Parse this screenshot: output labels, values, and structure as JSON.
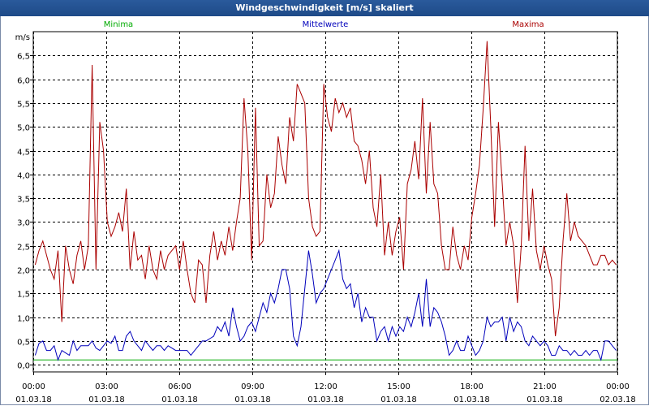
{
  "window": {
    "title": "Windgeschwindigkeit [m/s] skaliert"
  },
  "chart_data": {
    "type": "line",
    "unit": "m/s",
    "ylim": [
      -0.15,
      7.0
    ],
    "yticks": [
      "0,0",
      "0,5",
      "1,0",
      "1,5",
      "2,0",
      "2,5",
      "3,0",
      "3,5",
      "4,0",
      "4,5",
      "5,0",
      "5,5",
      "6,0",
      "6,5"
    ],
    "ytick_values": [
      0,
      0.5,
      1.0,
      1.5,
      2.0,
      2.5,
      3.0,
      3.5,
      4.0,
      4.5,
      5.0,
      5.5,
      6.0,
      6.5
    ],
    "xlim_hours": [
      0,
      24
    ],
    "xtick_hours": [
      0,
      3,
      6,
      9,
      12,
      15,
      18,
      21,
      24
    ],
    "xticks_time": [
      "00:00",
      "03:00",
      "06:00",
      "09:00",
      "12:00",
      "15:00",
      "18:00",
      "21:00",
      "00:00"
    ],
    "xticks_date": [
      "01.03.18",
      "01.03.18",
      "01.03.18",
      "01.03.18",
      "01.03.18",
      "01.03.18",
      "01.03.18",
      "01.03.18",
      "02.03.18"
    ],
    "grid": true,
    "series": [
      {
        "name": "Minima",
        "color": "#00aa00",
        "constant": 0.1
      },
      {
        "name": "Mittelwerte",
        "color": "#0000bb",
        "values": [
          0.2,
          0.45,
          0.5,
          0.3,
          0.3,
          0.4,
          0.1,
          0.3,
          0.25,
          0.2,
          0.5,
          0.3,
          0.4,
          0.4,
          0.4,
          0.5,
          0.35,
          0.3,
          0.4,
          0.5,
          0.45,
          0.6,
          0.3,
          0.3,
          0.6,
          0.7,
          0.5,
          0.4,
          0.3,
          0.5,
          0.4,
          0.3,
          0.4,
          0.4,
          0.3,
          0.4,
          0.35,
          0.3,
          0.3,
          0.3,
          0.3,
          0.2,
          0.3,
          0.4,
          0.5,
          0.5,
          0.55,
          0.6,
          0.8,
          0.7,
          0.9,
          0.6,
          1.2,
          0.8,
          0.5,
          0.6,
          0.8,
          0.9,
          0.7,
          1.0,
          1.3,
          1.1,
          1.5,
          1.3,
          1.6,
          2.0,
          2.0,
          1.6,
          0.6,
          0.4,
          0.8,
          1.6,
          2.4,
          1.9,
          1.3,
          1.5,
          1.6,
          1.8,
          2.0,
          2.2,
          2.4,
          1.8,
          1.6,
          1.7,
          1.2,
          1.5,
          0.9,
          1.2,
          1.0,
          1.0,
          0.5,
          0.7,
          0.8,
          0.5,
          0.8,
          0.6,
          0.8,
          0.7,
          1.0,
          0.8,
          1.1,
          1.5,
          0.8,
          1.8,
          0.8,
          1.2,
          1.1,
          0.9,
          0.6,
          0.2,
          0.3,
          0.5,
          0.3,
          0.3,
          0.6,
          0.4,
          0.2,
          0.3,
          0.5,
          1.0,
          0.8,
          0.9,
          0.9,
          1.0,
          0.5,
          1.0,
          0.7,
          0.9,
          0.8,
          0.5,
          0.4,
          0.6,
          0.5,
          0.4,
          0.5,
          0.4,
          0.2,
          0.2,
          0.4,
          0.3,
          0.3,
          0.2,
          0.3,
          0.2,
          0.2,
          0.3,
          0.2,
          0.3,
          0.3,
          0.1,
          0.5,
          0.5,
          0.4,
          0.3
        ]
      },
      {
        "name": "Maxima",
        "color": "#aa0000",
        "values": [
          2.1,
          2.4,
          2.6,
          2.3,
          2.0,
          1.8,
          2.4,
          0.9,
          2.5,
          2.0,
          1.7,
          2.3,
          2.6,
          2.0,
          2.5,
          6.3,
          2.0,
          5.1,
          4.5,
          3.0,
          2.7,
          2.9,
          3.2,
          2.8,
          3.7,
          2.0,
          2.8,
          2.2,
          2.3,
          1.8,
          2.5,
          2.0,
          1.8,
          2.4,
          2.0,
          2.3,
          2.4,
          2.5,
          2.0,
          2.6,
          2.0,
          1.5,
          1.3,
          2.2,
          2.1,
          1.3,
          2.3,
          2.8,
          2.2,
          2.6,
          2.3,
          2.9,
          2.4,
          3.0,
          3.5,
          5.6,
          4.5,
          2.2,
          5.4,
          2.5,
          2.6,
          4.0,
          3.3,
          3.6,
          4.8,
          4.2,
          3.8,
          5.2,
          4.7,
          5.9,
          5.7,
          5.5,
          3.5,
          2.9,
          2.7,
          2.8,
          5.9,
          5.2,
          4.9,
          5.6,
          5.3,
          5.5,
          5.2,
          5.4,
          4.7,
          4.6,
          4.3,
          3.8,
          4.5,
          3.3,
          2.9,
          4.0,
          2.3,
          3.0,
          2.3,
          2.8,
          3.1,
          2.0,
          3.8,
          4.1,
          4.7,
          3.9,
          5.6,
          3.6,
          5.1,
          3.8,
          3.6,
          2.5,
          2.0,
          2.0,
          2.9,
          2.3,
          2.0,
          2.5,
          2.2,
          3.1,
          3.6,
          4.2,
          5.4,
          6.8,
          5.0,
          2.9,
          5.1,
          3.8,
          2.5,
          3.0,
          2.5,
          1.3,
          2.5,
          4.6,
          2.6,
          3.7,
          2.4,
          2.0,
          2.5,
          2.1,
          1.8,
          0.6,
          1.2,
          2.6,
          3.6,
          2.6,
          3.0,
          2.7,
          2.6,
          2.5,
          2.3,
          2.1,
          2.1,
          2.3,
          2.3,
          2.1,
          2.2,
          2.1
        ]
      }
    ]
  }
}
